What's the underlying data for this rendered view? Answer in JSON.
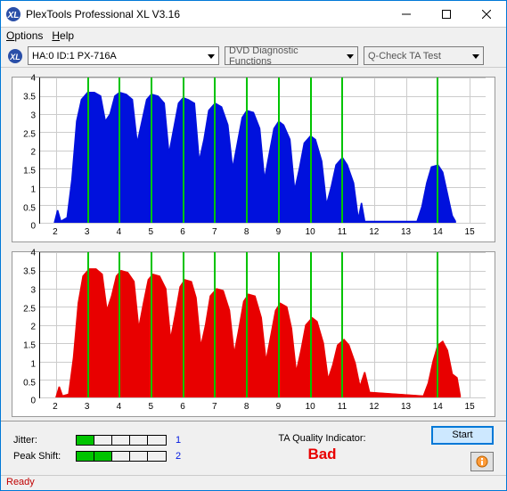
{
  "window": {
    "title": "PlexTools Professional XL V3.16",
    "icon_bg": "#2a4fa8",
    "icon_fg": "#ffffff"
  },
  "menubar": {
    "options": "Options",
    "options_ul": "O",
    "help": "Help",
    "help_ul": "H"
  },
  "toolbar": {
    "drive": "HA:0 ID:1 PX-716A",
    "fn1": "DVD Diagnostic Functions",
    "fn2": "Q-Check TA Test"
  },
  "chart_cfg": {
    "ymin": 0,
    "ymax": 4,
    "yticks": [
      0,
      0.5,
      1,
      1.5,
      2,
      2.5,
      3,
      3.5,
      4
    ],
    "xmin": 1.5,
    "xmax": 15.5,
    "xticks": [
      2,
      3,
      4,
      5,
      6,
      7,
      8,
      9,
      10,
      11,
      12,
      13,
      14,
      15
    ],
    "markers": [
      3,
      4,
      5,
      6,
      7,
      8,
      9,
      10,
      11,
      14
    ],
    "grid_color": "#cccccc",
    "marker_color": "#00c400",
    "top_color": "#0011dd",
    "bot_color": "#e80000",
    "top_series": [
      [
        1.95,
        0
      ],
      [
        2.05,
        0.35
      ],
      [
        2.15,
        0.05
      ],
      [
        2.35,
        0.15
      ],
      [
        2.5,
        1.2
      ],
      [
        2.65,
        2.8
      ],
      [
        2.8,
        3.4
      ],
      [
        3.0,
        3.6
      ],
      [
        3.2,
        3.6
      ],
      [
        3.4,
        3.5
      ],
      [
        3.55,
        2.8
      ],
      [
        3.7,
        3.0
      ],
      [
        3.85,
        3.5
      ],
      [
        4.0,
        3.6
      ],
      [
        4.2,
        3.55
      ],
      [
        4.4,
        3.4
      ],
      [
        4.55,
        2.2
      ],
      [
        4.7,
        2.8
      ],
      [
        4.85,
        3.4
      ],
      [
        5.0,
        3.55
      ],
      [
        5.2,
        3.5
      ],
      [
        5.4,
        3.3
      ],
      [
        5.55,
        1.9
      ],
      [
        5.7,
        2.6
      ],
      [
        5.85,
        3.3
      ],
      [
        6.0,
        3.45
      ],
      [
        6.15,
        3.4
      ],
      [
        6.35,
        3.3
      ],
      [
        6.5,
        1.7
      ],
      [
        6.65,
        2.3
      ],
      [
        6.8,
        3.1
      ],
      [
        7.0,
        3.3
      ],
      [
        7.2,
        3.2
      ],
      [
        7.4,
        2.7
      ],
      [
        7.55,
        1.5
      ],
      [
        7.7,
        2.2
      ],
      [
        7.85,
        2.9
      ],
      [
        8.0,
        3.1
      ],
      [
        8.2,
        3.05
      ],
      [
        8.4,
        2.6
      ],
      [
        8.55,
        1.2
      ],
      [
        8.7,
        1.9
      ],
      [
        8.85,
        2.6
      ],
      [
        9.0,
        2.8
      ],
      [
        9.15,
        2.7
      ],
      [
        9.35,
        2.3
      ],
      [
        9.5,
        0.9
      ],
      [
        9.65,
        1.5
      ],
      [
        9.8,
        2.2
      ],
      [
        10.0,
        2.4
      ],
      [
        10.15,
        2.3
      ],
      [
        10.35,
        1.7
      ],
      [
        10.5,
        0.5
      ],
      [
        10.65,
        1.0
      ],
      [
        10.8,
        1.6
      ],
      [
        11.0,
        1.8
      ],
      [
        11.15,
        1.6
      ],
      [
        11.35,
        1.1
      ],
      [
        11.5,
        0.1
      ],
      [
        11.6,
        0.55
      ],
      [
        11.7,
        0.05
      ],
      [
        13.35,
        0.05
      ],
      [
        13.5,
        0.45
      ],
      [
        13.65,
        1.1
      ],
      [
        13.8,
        1.55
      ],
      [
        14.0,
        1.6
      ],
      [
        14.15,
        1.4
      ],
      [
        14.3,
        0.8
      ],
      [
        14.45,
        0.2
      ],
      [
        14.55,
        0.05
      ]
    ],
    "bot_series": [
      [
        2.0,
        0
      ],
      [
        2.1,
        0.3
      ],
      [
        2.2,
        0.05
      ],
      [
        2.4,
        0.1
      ],
      [
        2.55,
        1.1
      ],
      [
        2.7,
        2.6
      ],
      [
        2.85,
        3.35
      ],
      [
        3.05,
        3.55
      ],
      [
        3.25,
        3.55
      ],
      [
        3.45,
        3.4
      ],
      [
        3.6,
        2.4
      ],
      [
        3.75,
        2.8
      ],
      [
        3.9,
        3.35
      ],
      [
        4.05,
        3.5
      ],
      [
        4.25,
        3.45
      ],
      [
        4.45,
        3.2
      ],
      [
        4.6,
        1.9
      ],
      [
        4.75,
        2.6
      ],
      [
        4.9,
        3.25
      ],
      [
        5.05,
        3.4
      ],
      [
        5.25,
        3.35
      ],
      [
        5.45,
        3.0
      ],
      [
        5.6,
        1.6
      ],
      [
        5.75,
        2.3
      ],
      [
        5.9,
        3.05
      ],
      [
        6.05,
        3.25
      ],
      [
        6.25,
        3.2
      ],
      [
        6.4,
        2.75
      ],
      [
        6.55,
        1.4
      ],
      [
        6.7,
        2.0
      ],
      [
        6.85,
        2.8
      ],
      [
        7.05,
        3.0
      ],
      [
        7.25,
        2.95
      ],
      [
        7.45,
        2.4
      ],
      [
        7.6,
        1.2
      ],
      [
        7.75,
        1.9
      ],
      [
        7.9,
        2.65
      ],
      [
        8.05,
        2.85
      ],
      [
        8.25,
        2.8
      ],
      [
        8.45,
        2.2
      ],
      [
        8.6,
        1.0
      ],
      [
        8.75,
        1.7
      ],
      [
        8.9,
        2.4
      ],
      [
        9.05,
        2.6
      ],
      [
        9.25,
        2.5
      ],
      [
        9.4,
        1.9
      ],
      [
        9.55,
        0.7
      ],
      [
        9.7,
        1.3
      ],
      [
        9.85,
        2.0
      ],
      [
        10.05,
        2.2
      ],
      [
        10.2,
        2.1
      ],
      [
        10.4,
        1.5
      ],
      [
        10.55,
        0.5
      ],
      [
        10.7,
        0.9
      ],
      [
        10.85,
        1.45
      ],
      [
        11.05,
        1.6
      ],
      [
        11.2,
        1.45
      ],
      [
        11.4,
        0.95
      ],
      [
        11.55,
        0.3
      ],
      [
        11.7,
        0.7
      ],
      [
        11.85,
        0.15
      ],
      [
        13.55,
        0.05
      ],
      [
        13.7,
        0.4
      ],
      [
        13.85,
        1.0
      ],
      [
        14.0,
        1.45
      ],
      [
        14.15,
        1.55
      ],
      [
        14.3,
        1.3
      ],
      [
        14.45,
        0.65
      ],
      [
        14.6,
        0.55
      ],
      [
        14.7,
        0.05
      ]
    ]
  },
  "metrics": {
    "jitter": {
      "label": "Jitter:",
      "filled": 1,
      "total": 5,
      "value": "1",
      "value_color": "#0018e0"
    },
    "peak": {
      "label": "Peak Shift:",
      "filled": 2,
      "total": 5,
      "value": "2",
      "value_color": "#0018e0"
    }
  },
  "quality": {
    "label": "TA Quality Indicator:",
    "value": "Bad",
    "value_color": "#e80000"
  },
  "buttons": {
    "start": "Start"
  },
  "status": {
    "text": "Ready",
    "color": "#c00000"
  }
}
